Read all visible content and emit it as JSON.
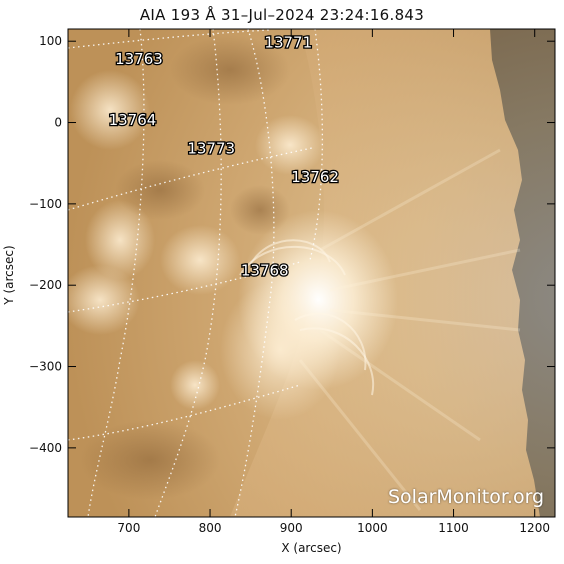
{
  "title": "AIA 193 Å 31–Jul–2024 23:24:16.843",
  "xlabel": "X (arcsec)",
  "ylabel": "Y (arcsec)",
  "watermark": "SolarMonitor.org",
  "axes": {
    "x_range": [
      625,
      1225
    ],
    "y_range": [
      -485,
      115
    ],
    "x_ticks": [
      700,
      800,
      900,
      1000,
      1100,
      1200
    ],
    "y_ticks": [
      100,
      0,
      -100,
      -200,
      -300,
      -400
    ],
    "x_tick_labels": [
      "700",
      "800",
      "900",
      "1000",
      "1100",
      "1200"
    ],
    "y_tick_labels": [
      "100",
      "0",
      "−100",
      "−200",
      "−300",
      "−400"
    ]
  },
  "active_regions": [
    {
      "number": "13763",
      "x": 683,
      "y": 72
    },
    {
      "number": "13771",
      "x": 867,
      "y": 92
    },
    {
      "number": "13764",
      "x": 675,
      "y": -3
    },
    {
      "number": "13773",
      "x": 772,
      "y": -38
    },
    {
      "number": "13762",
      "x": 900,
      "y": -73
    },
    {
      "number": "13768",
      "x": 838,
      "y": -188
    }
  ],
  "colors": {
    "disk_base": "#c49a5e",
    "disk_bright": "#fff6e3",
    "space": "#000000",
    "grid": "#ffffff"
  }
}
